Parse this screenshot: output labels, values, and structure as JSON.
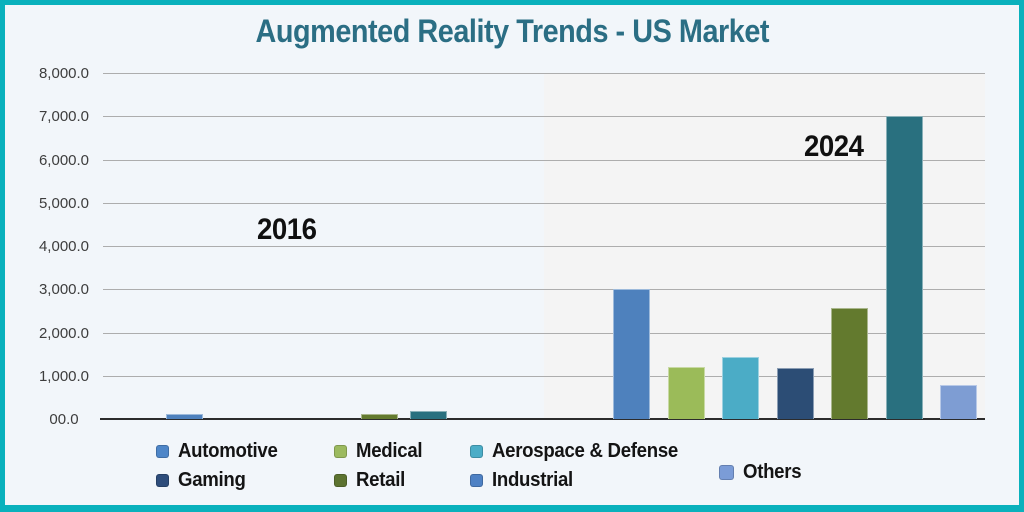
{
  "title": "Augmented Reality Trends - US Market",
  "colors": {
    "frame_border": "#0ab1bc",
    "background": "#f2f6fa",
    "title_text": "#2b6e84",
    "highlight_band": "#f4f4f4",
    "gridline": "#adadad",
    "axis_line": "#2c2c2c",
    "tick_text": "#3d3d3d"
  },
  "chart_data": {
    "type": "bar",
    "title": "Augmented Reality Trends - US Market",
    "categories": [
      "2016",
      "2024"
    ],
    "series": [
      {
        "name": "Automotive",
        "bar_color": "#4e81bd",
        "legend_color": "#4e86c8",
        "values": [
          110,
          3000
        ]
      },
      {
        "name": "Medical",
        "bar_color": "#9bbb59",
        "legend_color": "#9cba5f",
        "values": [
          0,
          1200
        ]
      },
      {
        "name": "Aerospace & Defense",
        "bar_color": "#4bacc6",
        "legend_color": "#4badc7",
        "values": [
          0,
          1430
        ]
      },
      {
        "name": "Gaming",
        "bar_color": "#2c4d75",
        "legend_color": "#2e4d7b",
        "values": [
          0,
          1180
        ]
      },
      {
        "name": "Retail",
        "bar_color": "#637a2e",
        "legend_color": "#5d7330",
        "values": [
          110,
          2570
        ]
      },
      {
        "name": "Industrial",
        "bar_color": "#29707f",
        "legend_color": "#4e81c4",
        "values": [
          190,
          7000
        ]
      },
      {
        "name": "Others",
        "bar_color": "#7e9dd3",
        "legend_color": "#7b9cd7",
        "values": [
          0,
          780
        ]
      }
    ],
    "xlabel": "",
    "ylabel": "",
    "ylim": [
      0,
      8000
    ],
    "ytick_step": 1000,
    "ytick_labels": [
      "8,000.0",
      "7,000.0",
      "6,000.0",
      "5,000.0",
      "4,000.0",
      "3,000.0",
      "2,000.0",
      "1,000.0",
      "00.0"
    ],
    "grid": "horizontal",
    "legend_position": "bottom",
    "highlight_band_category": "2024"
  }
}
